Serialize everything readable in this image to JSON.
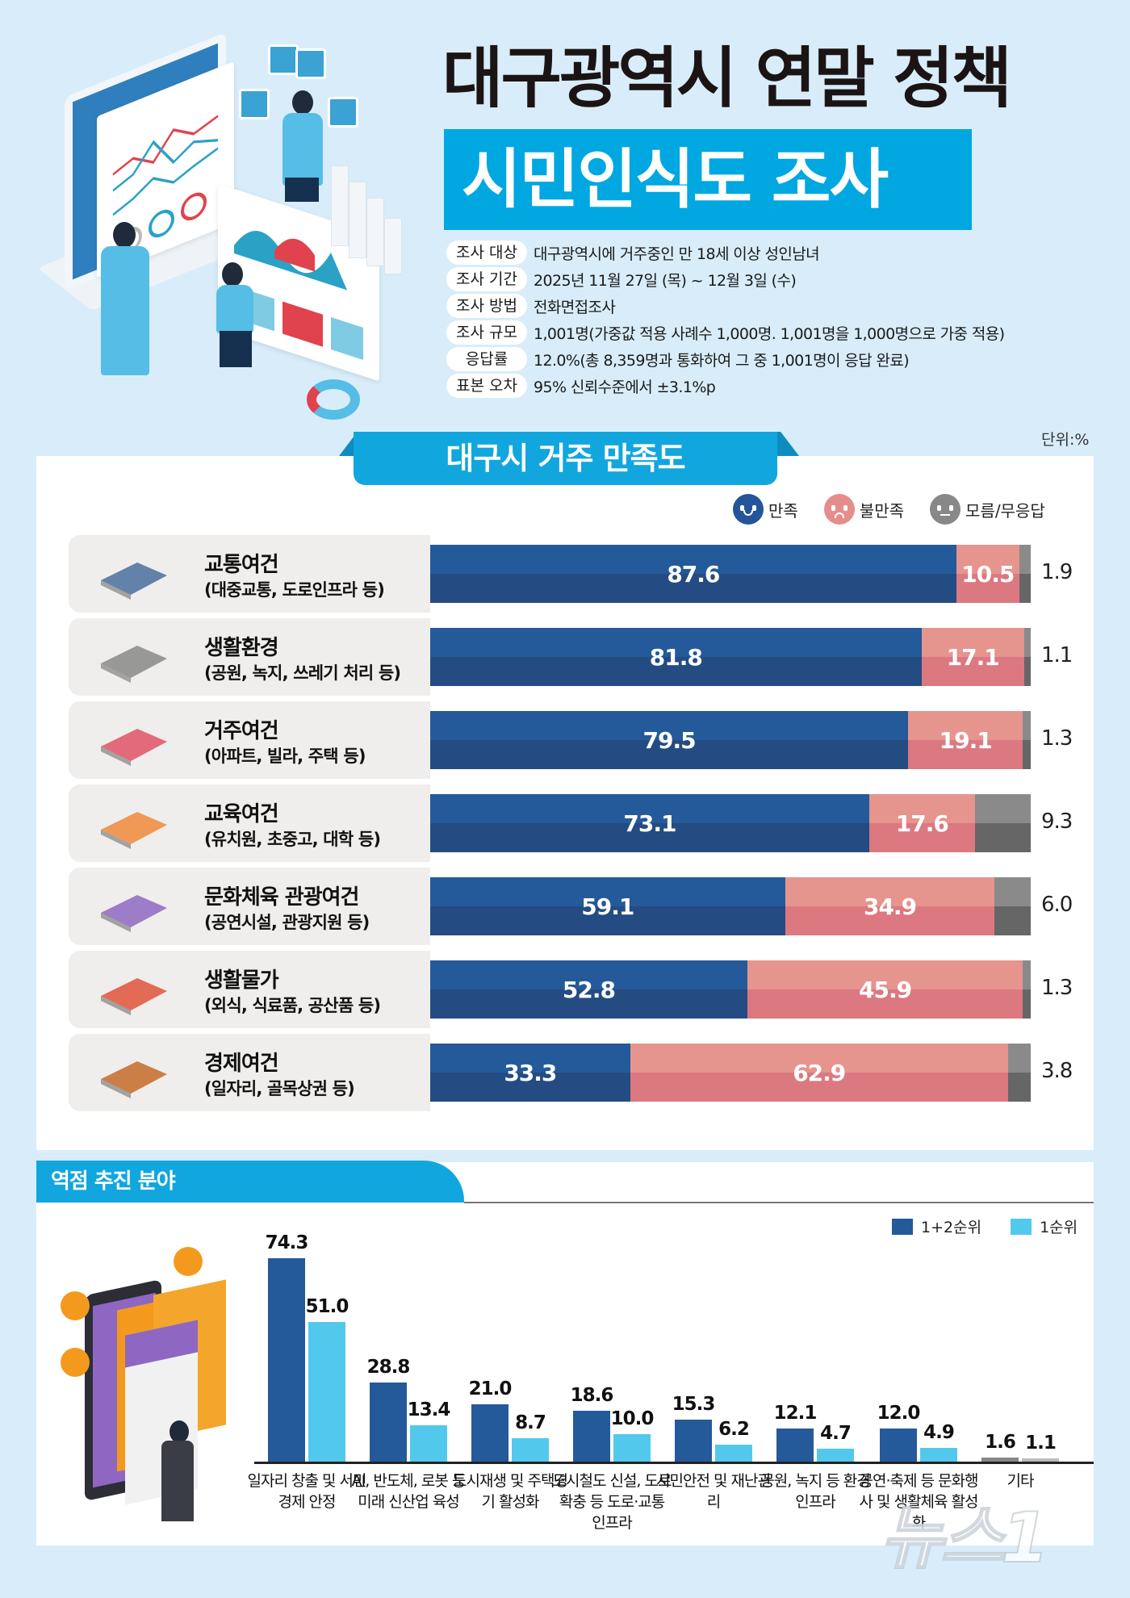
{
  "header": {
    "title_line1": "대구광역시 연말 정책",
    "title_line2": "시민인식도 조사",
    "info": [
      {
        "label": "조사 대상",
        "value": "대구광역시에 거주중인 만 18세 이상 성인남녀"
      },
      {
        "label": "조사 기간",
        "value": "2025년 11월 27일 (목) ~ 12월 3일 (수)"
      },
      {
        "label": "조사 방법",
        "value": "전화면접조사"
      },
      {
        "label": "조사 규모",
        "value": "1,001명(가중값 적용 사례수 1,000명. 1,001명을 1,000명으로 가중 적용)"
      },
      {
        "label": "응답률",
        "value": "12.0%(총 8,359명과 통화하여 그 중 1,001명이 응답 완료)"
      },
      {
        "label": "표본 오차",
        "value": "95% 신뢰수준에서 ±3.1%p"
      }
    ]
  },
  "satisfaction": {
    "section_title": "대구시 거주 만족도",
    "unit": "단위:%",
    "legend": [
      {
        "label": "만족",
        "icon": "happy-face-icon",
        "color": "#245a99"
      },
      {
        "label": "불만족",
        "icon": "sad-face-icon",
        "color": "#e5948e"
      },
      {
        "label": "모름/무응답",
        "icon": "neutral-face-icon",
        "color": "#8a8a8a"
      }
    ],
    "rows": [
      {
        "title": "교통여건",
        "sub": "(대중교통, 도로인프라 등)",
        "icon": "bus-icon",
        "satisfied": "87.6",
        "dissatisfied": "10.5",
        "dk": "1.9"
      },
      {
        "title": "생활환경",
        "sub": "(공원, 녹지, 쓰레기 처리 등)",
        "icon": "couch-family-icon",
        "satisfied": "81.8",
        "dissatisfied": "17.1",
        "dk": "1.1"
      },
      {
        "title": "거주여건",
        "sub": "(아파트, 빌라, 주택 등)",
        "icon": "house-icon",
        "satisfied": "79.5",
        "dissatisfied": "19.1",
        "dk": "1.3"
      },
      {
        "title": "교육여건",
        "sub": "(유치원, 초중고, 대학 등)",
        "icon": "school-icon",
        "satisfied": "73.1",
        "dissatisfied": "17.6",
        "dk": "9.3"
      },
      {
        "title": "문화체육 관광여건",
        "sub": "(공연시설, 관광지원 등)",
        "icon": "travel-tablet-icon",
        "satisfied": "59.1",
        "dissatisfied": "34.9",
        "dk": "6.0"
      },
      {
        "title": "생활물가",
        "sub": "(외식, 식료품, 공산품 등)",
        "icon": "shopping-basket-icon",
        "satisfied": "52.8",
        "dissatisfied": "45.9",
        "dk": "1.3"
      },
      {
        "title": "경제여건",
        "sub": "(일자리, 골목상권 등)",
        "icon": "money-bank-icon",
        "satisfied": "33.3",
        "dissatisfied": "62.9",
        "dk": "3.8"
      }
    ]
  },
  "priority": {
    "section_title": "역점 추진 분야",
    "legend": [
      {
        "label": "1+2순위",
        "color": "#245a99"
      },
      {
        "label": "1순위",
        "color": "#52c9ec"
      }
    ]
  },
  "watermark": "뉴스1",
  "chart_data": [
    {
      "type": "bar",
      "orientation": "horizontal-stacked",
      "title": "대구시 거주 만족도",
      "unit": "%",
      "categories": [
        "교통여건",
        "생활환경",
        "거주여건",
        "교육여건",
        "문화체육 관광여건",
        "생활물가",
        "경제여건"
      ],
      "series": [
        {
          "name": "만족",
          "values": [
            87.6,
            81.8,
            79.5,
            73.1,
            59.1,
            52.8,
            33.3
          ]
        },
        {
          "name": "불만족",
          "values": [
            10.5,
            17.1,
            19.1,
            17.6,
            34.9,
            45.9,
            62.9
          ]
        },
        {
          "name": "모름/무응답",
          "values": [
            1.9,
            1.1,
            1.3,
            9.3,
            6.0,
            1.3,
            3.8
          ]
        }
      ],
      "legend_position": "top-right",
      "grid": false
    },
    {
      "type": "bar",
      "orientation": "vertical-grouped",
      "title": "역점 추진 분야",
      "unit": "%",
      "categories": [
        "일자리 창출 및 서민경제 안정",
        "AI, 반도체, 로봇 등 미래 신산업 육성",
        "도시재생 및 주택경기 활성화",
        "도시철도 신설, 도로확충 등 도로·교통 인프라",
        "시민안전 및 재난관리",
        "공원, 녹지 등 환경 인프라",
        "공연·축제 등 문화행사 및 생활체육 활성화",
        "기타"
      ],
      "series": [
        {
          "name": "1+2순위",
          "values": [
            74.3,
            28.8,
            21.0,
            18.6,
            15.3,
            12.1,
            12.0,
            1.6
          ]
        },
        {
          "name": "1순위",
          "values": [
            51.0,
            13.4,
            8.7,
            10.0,
            6.2,
            4.7,
            4.9,
            1.1
          ]
        }
      ],
      "legend_position": "top-right",
      "grid": false
    }
  ]
}
